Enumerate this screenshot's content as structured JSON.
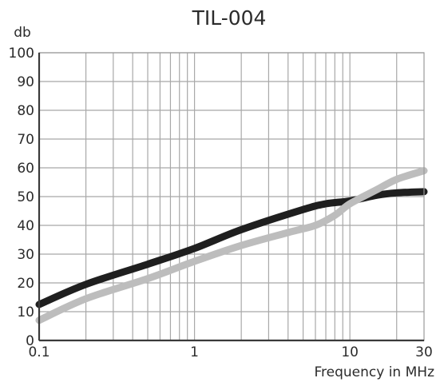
{
  "chart_data": {
    "type": "line",
    "title": "TIL-004",
    "ylabel": "db",
    "xlabel": "Frequency in MHz",
    "x_scale": "log",
    "xlim": [
      0.1,
      30
    ],
    "ylim": [
      0,
      100
    ],
    "grid": true,
    "x_tick_labels": [
      {
        "value": 0.1,
        "label": "0.1"
      },
      {
        "value": 1,
        "label": "1"
      },
      {
        "value": 10,
        "label": "10"
      },
      {
        "value": 30,
        "label": "30"
      }
    ],
    "y_tick_labels": [
      {
        "value": 0,
        "label": "0"
      },
      {
        "value": 10,
        "label": "10"
      },
      {
        "value": 20,
        "label": "20"
      },
      {
        "value": 30,
        "label": "30"
      },
      {
        "value": 40,
        "label": "40"
      },
      {
        "value": 50,
        "label": "50"
      },
      {
        "value": 60,
        "label": "60"
      },
      {
        "value": 70,
        "label": "70"
      },
      {
        "value": 80,
        "label": "80"
      },
      {
        "value": 90,
        "label": "90"
      },
      {
        "value": 100,
        "label": "100"
      }
    ],
    "series": [
      {
        "color": "#1f1f1f",
        "x": [
          0.1,
          0.2,
          0.5,
          1,
          2,
          5,
          7,
          10,
          15,
          20,
          30
        ],
        "y": [
          12.5,
          19.5,
          26.5,
          32.0,
          38.5,
          45.5,
          47.5,
          48.5,
          50.5,
          51.3,
          51.7
        ]
      },
      {
        "color": "#bdbdbd",
        "x": [
          0.1,
          0.2,
          0.5,
          1,
          2,
          4,
          6,
          8,
          10,
          15,
          20,
          30
        ],
        "y": [
          7.0,
          14.5,
          21.5,
          27.5,
          33.0,
          37.5,
          40.0,
          43.5,
          47.5,
          52.5,
          56.0,
          59.0
        ]
      }
    ]
  }
}
